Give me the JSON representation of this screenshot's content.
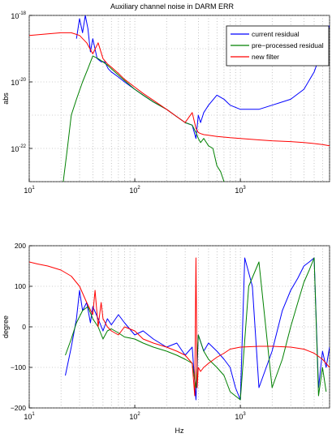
{
  "figure": {
    "title": "Auxiliary channel noise in DARM ERR"
  },
  "chart_data": [
    {
      "type": "line",
      "title": "Auxiliary channel noise in DARM ERR",
      "xlabel": "",
      "ylabel": "abs",
      "xscale": "log",
      "yscale": "log",
      "xlim": [
        10,
        7000
      ],
      "ylim": [
        1e-23,
        1e-18
      ],
      "xticks": [
        {
          "value": 10,
          "base": "10",
          "exp": "1"
        },
        {
          "value": 100,
          "base": "10",
          "exp": "2"
        },
        {
          "value": 1000,
          "base": "10",
          "exp": "3"
        }
      ],
      "yticks": [
        {
          "value": 1e-22,
          "base": "10",
          "exp": "-22"
        },
        {
          "value": 1e-20,
          "base": "10",
          "exp": "-20"
        },
        {
          "value": 1e-18,
          "base": "10",
          "exp": "-18"
        }
      ],
      "grid": true,
      "legend_position": "top-right",
      "series": [
        {
          "name": "current residual",
          "color": "#0000ff",
          "x": [
            28,
            30,
            32,
            34,
            36,
            38,
            40,
            44,
            48,
            52,
            56,
            60,
            70,
            80,
            100,
            120,
            150,
            200,
            250,
            300,
            350,
            380,
            400,
            420,
            450,
            500,
            600,
            700,
            800,
            1000,
            1500,
            2000,
            3000,
            4000,
            5000,
            6000,
            7000
          ],
          "y": [
            2e-19,
            8e-19,
            3e-19,
            1e-18,
            4e-19,
            8e-20,
            2e-19,
            5e-20,
            4e-20,
            4e-20,
            2.5e-20,
            2e-20,
            1.4e-20,
            1e-20,
            6e-21,
            4e-21,
            2.5e-21,
            1.5e-21,
            9e-22,
            6e-22,
            5e-22,
            2e-22,
            1e-21,
            6e-22,
            1.2e-21,
            2e-21,
            4e-21,
            3e-21,
            2e-21,
            1.5e-21,
            1.5e-21,
            2e-21,
            3e-21,
            6e-21,
            2e-20,
            1e-19,
            5e-19
          ]
        },
        {
          "name": "pre−processed residual",
          "color": "#008000",
          "x": [
            21,
            23,
            25,
            28,
            32,
            36,
            40,
            45,
            50,
            55,
            60,
            70,
            80,
            100,
            120,
            150,
            200,
            250,
            300,
            350,
            380,
            400,
            420,
            450,
            500,
            550,
            600,
            650,
            700
          ],
          "y": [
            1e-23,
            1e-22,
            1e-21,
            3e-21,
            1e-20,
            2.5e-20,
            6e-20,
            5e-20,
            4e-20,
            3.2e-20,
            2.5e-20,
            1.6e-20,
            1.1e-20,
            6e-21,
            4e-21,
            2.5e-21,
            1.5e-21,
            9e-22,
            6e-22,
            5e-22,
            3e-22,
            2e-22,
            1.5e-22,
            2e-22,
            1.2e-22,
            1e-22,
            3e-23,
            2e-23,
            1e-23
          ]
        },
        {
          "name": "new filter",
          "color": "#ff0000",
          "x": [
            10,
            15,
            20,
            25,
            30,
            35,
            40,
            45,
            50,
            55,
            60,
            70,
            80,
            100,
            120,
            150,
            200,
            250,
            300,
            350,
            380,
            400,
            420,
            450,
            500,
            600,
            800,
            1000,
            1500,
            2000,
            3000,
            4000,
            5000,
            6000,
            7000
          ],
          "y": [
            2.5e-19,
            2.8e-19,
            3e-19,
            3e-19,
            2.5e-19,
            1.5e-19,
            7e-20,
            1.5e-19,
            5e-20,
            3.5e-20,
            2.8e-20,
            1.8e-20,
            1.2e-20,
            7e-21,
            4.5e-21,
            2.8e-21,
            1.5e-21,
            9e-22,
            6e-22,
            1.2e-21,
            4e-22,
            3e-22,
            2.8e-22,
            2.6e-22,
            2.5e-22,
            2.3e-22,
            2.1e-22,
            2e-22,
            1.8e-22,
            1.7e-22,
            1.6e-22,
            1.5e-22,
            1.4e-22,
            1.3e-22,
            1.2e-22
          ]
        }
      ]
    },
    {
      "type": "line",
      "title": "",
      "xlabel": "Hz",
      "ylabel": "degree",
      "xscale": "log",
      "yscale": "linear",
      "xlim": [
        10,
        7000
      ],
      "ylim": [
        -200,
        200
      ],
      "xticks": [
        {
          "value": 10,
          "base": "10",
          "exp": "1"
        },
        {
          "value": 100,
          "base": "10",
          "exp": "2"
        },
        {
          "value": 1000,
          "base": "10",
          "exp": "3"
        }
      ],
      "yticks": [
        {
          "value": 200,
          "label": "200"
        },
        {
          "value": 100,
          "label": "100"
        },
        {
          "value": 0,
          "label": "0"
        },
        {
          "value": -100,
          "label": "−100"
        },
        {
          "value": -200,
          "label": "−200"
        }
      ],
      "grid": true,
      "series": [
        {
          "name": "current residual",
          "color": "#0000ff",
          "x": [
            22,
            25,
            28,
            30,
            32,
            35,
            38,
            40,
            45,
            50,
            55,
            60,
            70,
            80,
            100,
            120,
            150,
            200,
            250,
            300,
            350,
            380,
            400,
            450,
            500,
            600,
            700,
            800,
            900,
            1000,
            1100,
            1300,
            1500,
            2000,
            2500,
            3000,
            3500,
            4000,
            4500,
            5000,
            5500,
            6000,
            6500,
            7000
          ],
          "y": [
            -120,
            -50,
            20,
            90,
            40,
            60,
            10,
            50,
            20,
            -10,
            20,
            5,
            30,
            10,
            -20,
            -10,
            -30,
            -50,
            -40,
            -70,
            -50,
            -180,
            -20,
            -60,
            -40,
            -60,
            -80,
            -100,
            -150,
            -180,
            170,
            100,
            -150,
            -60,
            40,
            90,
            120,
            150,
            160,
            170,
            -150,
            -60,
            -100,
            -50
          ]
        },
        {
          "name": "pre−processed residual",
          "color": "#008000",
          "x": [
            22,
            25,
            28,
            32,
            36,
            40,
            45,
            50,
            55,
            60,
            70,
            80,
            100,
            120,
            150,
            200,
            250,
            300,
            350,
            380,
            400,
            450,
            500,
            600,
            700,
            800,
            1000,
            1200,
            1500,
            2000,
            2500,
            3000,
            3500,
            4000,
            4500,
            5000,
            5500,
            6000,
            6500
          ],
          "y": [
            -70,
            -30,
            10,
            40,
            50,
            20,
            0,
            -30,
            -10,
            -5,
            -15,
            -25,
            -30,
            -40,
            -50,
            -60,
            -70,
            -80,
            -90,
            -150,
            -20,
            -60,
            -80,
            -100,
            -120,
            -160,
            -180,
            100,
            160,
            -150,
            -80,
            0,
            60,
            110,
            140,
            170,
            -170,
            -100,
            -160
          ]
        },
        {
          "name": "new filter",
          "color": "#ff0000",
          "x": [
            10,
            12,
            15,
            20,
            25,
            30,
            35,
            40,
            42,
            45,
            48,
            50,
            55,
            60,
            70,
            80,
            100,
            120,
            150,
            200,
            250,
            300,
            350,
            370,
            380,
            390,
            400,
            420,
            450,
            500,
            600,
            700,
            800,
            1000,
            1500,
            2000,
            3000,
            4000,
            5000,
            6000,
            7000
          ],
          "y": [
            160,
            155,
            150,
            140,
            125,
            100,
            60,
            30,
            90,
            0,
            60,
            20,
            0,
            -10,
            -20,
            0,
            -10,
            -30,
            -40,
            -50,
            -60,
            -70,
            -90,
            -170,
            170,
            -150,
            -100,
            -110,
            -100,
            -90,
            -75,
            -65,
            -55,
            -50,
            -48,
            -48,
            -50,
            -55,
            -65,
            -80,
            -100
          ]
        }
      ]
    }
  ]
}
